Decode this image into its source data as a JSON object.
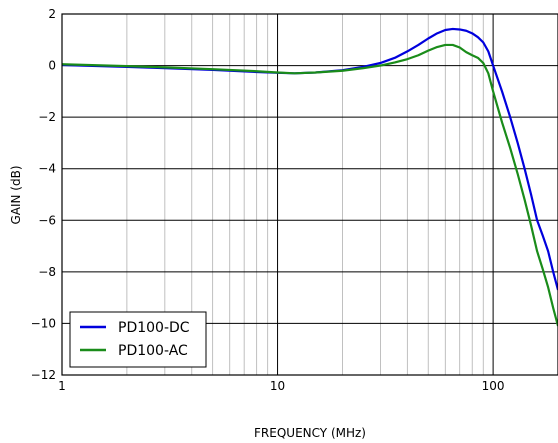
{
  "chart_data": {
    "type": "line",
    "title": "",
    "xlabel": "FREQUENCY (MHz)",
    "ylabel": "GAIN (dB)",
    "x_scale": "log",
    "xlim": [
      1,
      200
    ],
    "ylim": [
      -12,
      2
    ],
    "x_ticks": [
      {
        "value": 1,
        "label": "1"
      },
      {
        "value": 10,
        "label": "10"
      },
      {
        "value": 100,
        "label": "100"
      }
    ],
    "y_ticks": [
      {
        "value": 2,
        "label": "2"
      },
      {
        "value": 0,
        "label": "0"
      },
      {
        "value": -2,
        "label": "−2"
      },
      {
        "value": -4,
        "label": "−4"
      },
      {
        "value": -6,
        "label": "−6"
      },
      {
        "value": -8,
        "label": "−8"
      },
      {
        "value": -10,
        "label": "−10"
      },
      {
        "value": -12,
        "label": "−12"
      }
    ],
    "grid": true,
    "legend_position": "bottom-left",
    "series": [
      {
        "name": "PD100-DC",
        "color": "#0000dd",
        "points": [
          [
            1,
            0.02
          ],
          [
            2,
            -0.05
          ],
          [
            3,
            -0.1
          ],
          [
            5,
            -0.17
          ],
          [
            8,
            -0.25
          ],
          [
            10,
            -0.28
          ],
          [
            12,
            -0.3
          ],
          [
            15,
            -0.27
          ],
          [
            20,
            -0.18
          ],
          [
            25,
            -0.05
          ],
          [
            30,
            0.1
          ],
          [
            35,
            0.3
          ],
          [
            40,
            0.55
          ],
          [
            45,
            0.8
          ],
          [
            50,
            1.05
          ],
          [
            55,
            1.25
          ],
          [
            60,
            1.38
          ],
          [
            65,
            1.42
          ],
          [
            70,
            1.4
          ],
          [
            75,
            1.35
          ],
          [
            80,
            1.25
          ],
          [
            85,
            1.1
          ],
          [
            90,
            0.9
          ],
          [
            95,
            0.55
          ],
          [
            100,
            0.0
          ],
          [
            110,
            -1.0
          ],
          [
            120,
            -2.0
          ],
          [
            130,
            -3.0
          ],
          [
            140,
            -4.0
          ],
          [
            150,
            -5.0
          ],
          [
            160,
            -6.0
          ],
          [
            170,
            -6.6
          ],
          [
            180,
            -7.2
          ],
          [
            190,
            -8.0
          ],
          [
            200,
            -8.7
          ]
        ]
      },
      {
        "name": "PD100-AC",
        "color": "#1a8c1a",
        "points": [
          [
            1,
            0.05
          ],
          [
            2,
            -0.02
          ],
          [
            3,
            -0.07
          ],
          [
            5,
            -0.14
          ],
          [
            8,
            -0.22
          ],
          [
            10,
            -0.27
          ],
          [
            12,
            -0.3
          ],
          [
            15,
            -0.27
          ],
          [
            20,
            -0.2
          ],
          [
            25,
            -0.1
          ],
          [
            30,
            0.0
          ],
          [
            35,
            0.12
          ],
          [
            40,
            0.25
          ],
          [
            45,
            0.4
          ],
          [
            50,
            0.58
          ],
          [
            55,
            0.72
          ],
          [
            60,
            0.8
          ],
          [
            65,
            0.8
          ],
          [
            70,
            0.7
          ],
          [
            75,
            0.52
          ],
          [
            80,
            0.4
          ],
          [
            85,
            0.3
          ],
          [
            90,
            0.1
          ],
          [
            95,
            -0.3
          ],
          [
            100,
            -1.0
          ],
          [
            110,
            -2.2
          ],
          [
            120,
            -3.2
          ],
          [
            130,
            -4.2
          ],
          [
            140,
            -5.2
          ],
          [
            150,
            -6.2
          ],
          [
            160,
            -7.2
          ],
          [
            170,
            -7.9
          ],
          [
            180,
            -8.6
          ],
          [
            190,
            -9.4
          ],
          [
            200,
            -10.1
          ]
        ]
      }
    ]
  }
}
